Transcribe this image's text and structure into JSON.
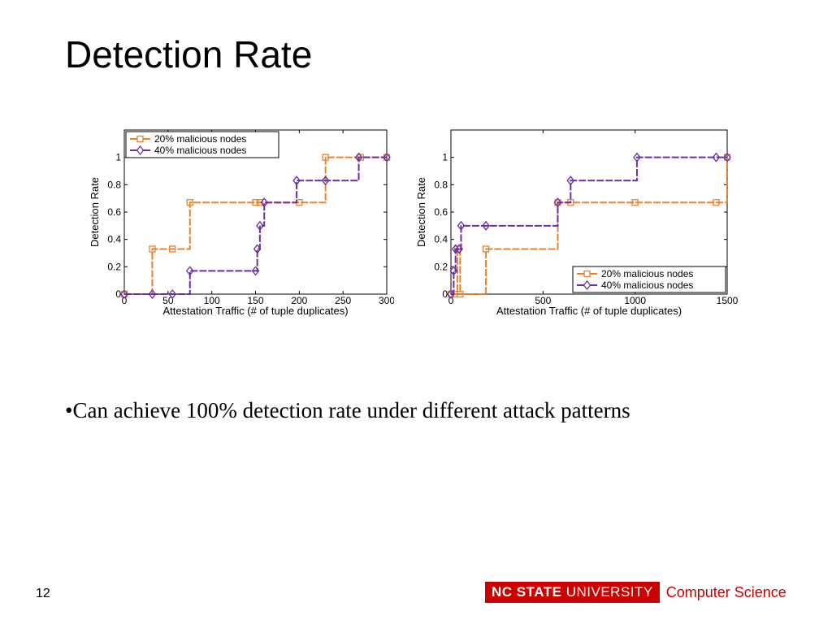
{
  "slide": {
    "title": "Detection Rate",
    "bullet": "•Can achieve 100% detection rate under different attack patterns",
    "page_number": "12",
    "footer": {
      "brand_bold": "NC STATE",
      "brand_rest": " UNIVERSITY",
      "department": "Computer Science"
    }
  },
  "colors": {
    "series1": "#e8822e",
    "series2": "#6a2fa3",
    "brand_red": "#cc0000"
  },
  "chart_data": [
    {
      "type": "line",
      "step": true,
      "xlabel": "Attestation Traffic (# of tuple duplicates)",
      "ylabel": "Detection Rate",
      "xlim": [
        0,
        300
      ],
      "ylim": [
        0,
        1.2
      ],
      "xticks": [
        0,
        50,
        100,
        150,
        200,
        250,
        300
      ],
      "xtick_labels": [
        "0",
        "50",
        "100",
        "150",
        "200",
        "250",
        "300"
      ],
      "yticks": [
        0,
        0.2,
        0.4,
        0.6,
        0.8,
        1
      ],
      "ytick_labels": [
        "0",
        "0.2",
        "0.4",
        "0.6",
        "0.8",
        "1"
      ],
      "legend": "top-left",
      "series": [
        {
          "name": "20% malicious nodes",
          "marker": "square",
          "x": [
            0,
            32,
            55,
            75,
            150,
            155,
            200,
            230,
            270,
            300
          ],
          "y": [
            0,
            0.33,
            0.33,
            0.67,
            0.67,
            0.67,
            0.67,
            1,
            1,
            1
          ]
        },
        {
          "name": "40% malicious nodes",
          "marker": "diamond",
          "x": [
            0,
            32,
            55,
            75,
            150,
            152,
            155,
            160,
            197,
            230,
            268,
            300
          ],
          "y": [
            0,
            0,
            0,
            0.17,
            0.17,
            0.33,
            0.5,
            0.67,
            0.83,
            0.83,
            1,
            1
          ]
        }
      ]
    },
    {
      "type": "line",
      "step": true,
      "xlabel": "Attestation Traffic (# of tuple duplicates)",
      "ylabel": "Detection Rate",
      "xlim": [
        0,
        1500
      ],
      "ylim": [
        0,
        1.2
      ],
      "xticks": [
        0,
        500,
        1000,
        1500
      ],
      "xtick_labels": [
        "0",
        "500",
        "1000",
        "1500"
      ],
      "yticks": [
        0,
        0.2,
        0.4,
        0.6,
        0.8,
        1
      ],
      "ytick_labels": [
        "0",
        "0.2",
        "0.4",
        "0.6",
        "0.8",
        "1"
      ],
      "legend": "bottom-right",
      "series": [
        {
          "name": "20% malicious nodes",
          "marker": "square",
          "x": [
            0,
            20,
            35,
            50,
            190,
            580,
            650,
            1000,
            1440,
            1500
          ],
          "y": [
            0,
            0,
            0.33,
            0,
            0.33,
            0.67,
            0.67,
            0.67,
            0.67,
            1
          ]
        },
        {
          "name": "40% malicious nodes",
          "marker": "diamond",
          "x": [
            0,
            15,
            25,
            45,
            55,
            190,
            580,
            650,
            1010,
            1440,
            1500
          ],
          "y": [
            0,
            0.17,
            0.33,
            0.33,
            0.5,
            0.5,
            0.67,
            0.83,
            1,
            1,
            1
          ]
        }
      ]
    }
  ]
}
